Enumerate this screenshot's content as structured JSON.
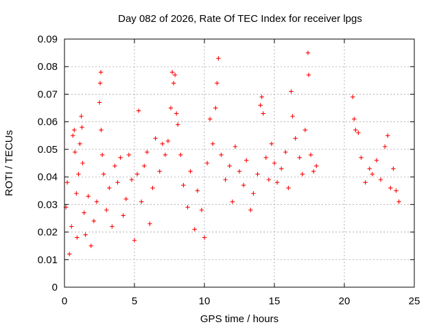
{
  "chart_data": {
    "type": "scatter",
    "title": "Day 082 of 2026, Rate Of TEC Index for receiver lpgs",
    "xlabel": "GPS time / hours",
    "ylabel": "ROTI / TECUs",
    "xlim": [
      0,
      25
    ],
    "ylim": [
      0,
      0.09
    ],
    "x_ticks": [
      0,
      5,
      10,
      15,
      20,
      25
    ],
    "x_tick_labels": [
      "0",
      "5",
      "10",
      "15",
      "20",
      "25"
    ],
    "y_ticks": [
      0,
      0.01,
      0.02,
      0.03,
      0.04,
      0.05,
      0.06,
      0.07,
      0.08,
      0.09
    ],
    "y_tick_labels": [
      "0",
      "0.01",
      "0.02",
      "0.03",
      "0.04",
      "0.05",
      "0.06",
      "0.07",
      "0.08",
      "0.09"
    ],
    "grid": true,
    "marker": "+",
    "color": "#ff0000",
    "data_gap_hours": [
      18.2,
      20.5
    ],
    "series": [
      {
        "points": [
          [
            0.1,
            0.029
          ],
          [
            0.2,
            0.038
          ],
          [
            0.35,
            0.012
          ],
          [
            0.5,
            0.022
          ],
          [
            0.6,
            0.055
          ],
          [
            0.7,
            0.057
          ],
          [
            0.75,
            0.049
          ],
          [
            0.85,
            0.034
          ],
          [
            0.9,
            0.018
          ],
          [
            1.0,
            0.041
          ],
          [
            1.1,
            0.052
          ],
          [
            1.2,
            0.062
          ],
          [
            1.25,
            0.058
          ],
          [
            1.3,
            0.045
          ],
          [
            1.4,
            0.027
          ],
          [
            1.5,
            0.019
          ],
          [
            1.7,
            0.033
          ],
          [
            1.9,
            0.015
          ],
          [
            2.1,
            0.024
          ],
          [
            2.3,
            0.031
          ],
          [
            2.5,
            0.067
          ],
          [
            2.55,
            0.074
          ],
          [
            2.6,
            0.078
          ],
          [
            2.62,
            0.057
          ],
          [
            2.7,
            0.048
          ],
          [
            2.8,
            0.041
          ],
          [
            3.0,
            0.028
          ],
          [
            3.2,
            0.036
          ],
          [
            3.4,
            0.022
          ],
          [
            3.6,
            0.044
          ],
          [
            3.8,
            0.038
          ],
          [
            4.0,
            0.047
          ],
          [
            4.2,
            0.026
          ],
          [
            4.4,
            0.032
          ],
          [
            4.6,
            0.048
          ],
          [
            4.8,
            0.039
          ],
          [
            5.0,
            0.017
          ],
          [
            5.2,
            0.041
          ],
          [
            5.3,
            0.064
          ],
          [
            5.5,
            0.031
          ],
          [
            5.7,
            0.044
          ],
          [
            5.9,
            0.049
          ],
          [
            6.1,
            0.023
          ],
          [
            6.3,
            0.036
          ],
          [
            6.5,
            0.054
          ],
          [
            6.8,
            0.042
          ],
          [
            7.0,
            0.052
          ],
          [
            7.2,
            0.048
          ],
          [
            7.4,
            0.053
          ],
          [
            7.6,
            0.065
          ],
          [
            7.7,
            0.078
          ],
          [
            7.8,
            0.074
          ],
          [
            7.9,
            0.077
          ],
          [
            8.0,
            0.063
          ],
          [
            8.1,
            0.059
          ],
          [
            8.3,
            0.048
          ],
          [
            8.5,
            0.037
          ],
          [
            8.8,
            0.029
          ],
          [
            9.0,
            0.042
          ],
          [
            9.3,
            0.021
          ],
          [
            9.5,
            0.035
          ],
          [
            9.8,
            0.028
          ],
          [
            10.0,
            0.018
          ],
          [
            10.2,
            0.045
          ],
          [
            10.4,
            0.061
          ],
          [
            10.6,
            0.052
          ],
          [
            10.8,
            0.065
          ],
          [
            10.9,
            0.074
          ],
          [
            11.0,
            0.083
          ],
          [
            11.2,
            0.048
          ],
          [
            11.5,
            0.039
          ],
          [
            11.8,
            0.044
          ],
          [
            12.0,
            0.031
          ],
          [
            12.2,
            0.051
          ],
          [
            12.5,
            0.042
          ],
          [
            12.8,
            0.037
          ],
          [
            13.0,
            0.046
          ],
          [
            13.3,
            0.028
          ],
          [
            13.5,
            0.034
          ],
          [
            13.8,
            0.041
          ],
          [
            14.0,
            0.066
          ],
          [
            14.1,
            0.069
          ],
          [
            14.2,
            0.063
          ],
          [
            14.4,
            0.047
          ],
          [
            14.6,
            0.039
          ],
          [
            14.8,
            0.052
          ],
          [
            15.0,
            0.045
          ],
          [
            15.2,
            0.038
          ],
          [
            15.5,
            0.043
          ],
          [
            15.8,
            0.049
          ],
          [
            16.0,
            0.036
          ],
          [
            16.2,
            0.071
          ],
          [
            16.3,
            0.062
          ],
          [
            16.5,
            0.054
          ],
          [
            16.8,
            0.047
          ],
          [
            17.0,
            0.041
          ],
          [
            17.2,
            0.057
          ],
          [
            17.4,
            0.085
          ],
          [
            17.45,
            0.077
          ],
          [
            17.6,
            0.048
          ],
          [
            17.8,
            0.042
          ],
          [
            18.0,
            0.044
          ],
          [
            20.6,
            0.069
          ],
          [
            20.7,
            0.061
          ],
          [
            20.8,
            0.057
          ],
          [
            21.0,
            0.056
          ],
          [
            21.2,
            0.047
          ],
          [
            21.5,
            0.038
          ],
          [
            21.8,
            0.043
          ],
          [
            22.0,
            0.041
          ],
          [
            22.3,
            0.046
          ],
          [
            22.6,
            0.039
          ],
          [
            22.9,
            0.051
          ],
          [
            23.1,
            0.055
          ],
          [
            23.3,
            0.036
          ],
          [
            23.5,
            0.043
          ],
          [
            23.7,
            0.035
          ],
          [
            23.9,
            0.031
          ]
        ]
      }
    ]
  }
}
